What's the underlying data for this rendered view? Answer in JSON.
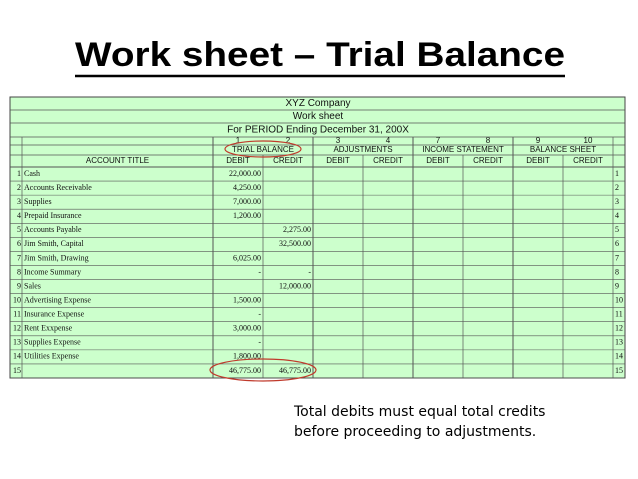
{
  "title": "Work sheet – Trial Balance",
  "worksheet": {
    "company": "XYZ Company",
    "name": "Work sheet",
    "period": "For PERIOD Ending December 31, 200X",
    "column_numbers": [
      "1",
      "2",
      "3",
      "4",
      "7",
      "8",
      "9",
      "10"
    ],
    "account_header": "ACCOUNT TITLE",
    "groups": [
      "TRIAL BALANCE",
      "ADJUSTMENTS",
      "INCOME STATEMENT",
      "BALANCE SHEET"
    ],
    "debit": "DEBIT",
    "credit": "CREDIT",
    "rows": [
      {
        "no": "1",
        "account": "Cash",
        "debit": "22,000.00"
      },
      {
        "no": "2",
        "account": "Accounts Receivable",
        "debit": "4,250.00"
      },
      {
        "no": "3",
        "account": "Supplies",
        "debit": "7,000.00"
      },
      {
        "no": "4",
        "account": "Prepaid Insurance",
        "debit": "1,200.00"
      },
      {
        "no": "5",
        "account": "Accounts Payable",
        "credit": "2,275.00"
      },
      {
        "no": "6",
        "account": "Jim Smith, Capital",
        "credit": "32,500.00"
      },
      {
        "no": "7",
        "account": "Jim Smith, Drawing",
        "debit": "6,025.00"
      },
      {
        "no": "8",
        "account": "Income Summary",
        "debit": "-",
        "credit": "-"
      },
      {
        "no": "9",
        "account": "Sales",
        "credit": "12,000.00"
      },
      {
        "no": "10",
        "account": "Advertising Expense",
        "debit": "1,500.00"
      },
      {
        "no": "11",
        "account": "Insurance Expense",
        "debit": "-"
      },
      {
        "no": "12",
        "account": "Rent Exxpense",
        "debit": "3,000.00"
      },
      {
        "no": "13",
        "account": "Supplies Expense",
        "debit": "-"
      },
      {
        "no": "14",
        "account": "Utilities Expense",
        "debit": "1,800.00"
      },
      {
        "no": "15",
        "debit": "46,775.00",
        "credit": "46,775.00"
      }
    ]
  },
  "note": [
    "Total debits must equal total credits",
    "before proceeding to adjustments."
  ]
}
